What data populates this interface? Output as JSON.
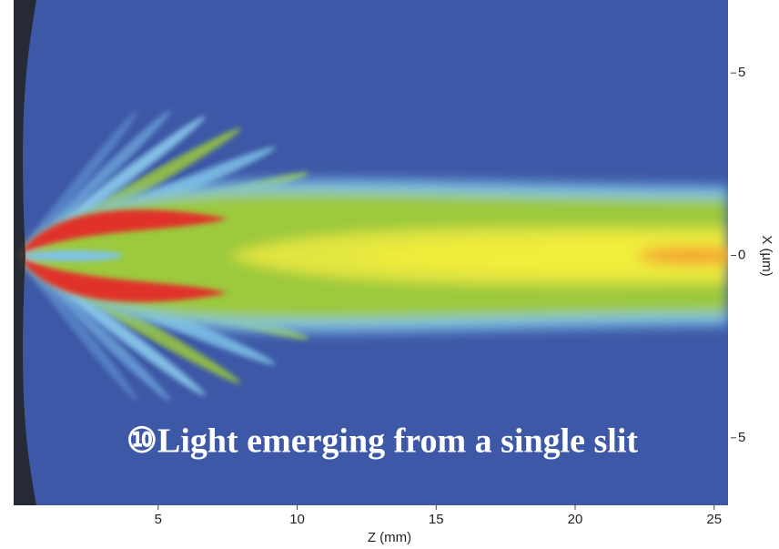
{
  "chart_data": {
    "type": "contour",
    "annotation": "⑩Light emerging from a single slit",
    "x_label": "Z (mm)",
    "y_label": "X (µm)",
    "xlim": [
      -0.2,
      25.5
    ],
    "xticks": [
      5,
      10,
      15,
      20,
      25
    ],
    "ylim": [
      -6.85,
      7
    ],
    "yticks": [
      {
        "value": 5,
        "label": "5"
      },
      {
        "value": 0,
        "label": "0"
      },
      {
        "value": -5,
        "label": "5"
      }
    ]
  }
}
